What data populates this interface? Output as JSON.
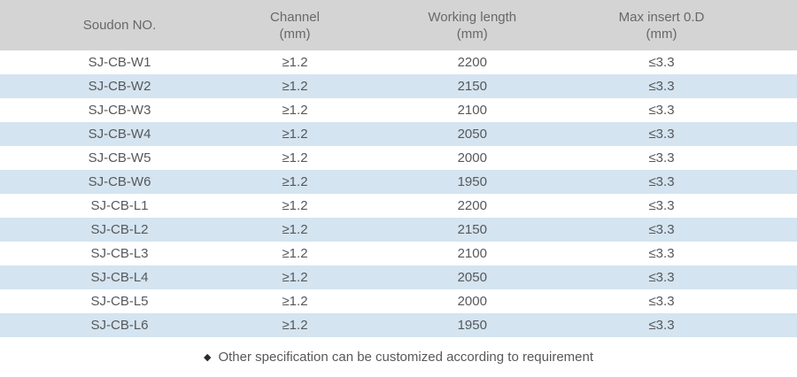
{
  "table": {
    "columns": [
      {
        "label": "Soudon NO.",
        "unit": ""
      },
      {
        "label": "Channel",
        "unit": "(mm)"
      },
      {
        "label": "Working length",
        "unit": "(mm)"
      },
      {
        "label": "Max insert 0.D",
        "unit": "(mm)"
      }
    ],
    "rows": [
      [
        "SJ-CB-W1",
        "≥1.2",
        "2200",
        "≤3.3"
      ],
      [
        "SJ-CB-W2",
        "≥1.2",
        "2150",
        "≤3.3"
      ],
      [
        "SJ-CB-W3",
        "≥1.2",
        "2100",
        "≤3.3"
      ],
      [
        "SJ-CB-W4",
        "≥1.2",
        "2050",
        "≤3.3"
      ],
      [
        "SJ-CB-W5",
        "≥1.2",
        "2000",
        "≤3.3"
      ],
      [
        "SJ-CB-W6",
        "≥1.2",
        "1950",
        "≤3.3"
      ],
      [
        "SJ-CB-L1",
        "≥1.2",
        "2200",
        "≤3.3"
      ],
      [
        "SJ-CB-L2",
        "≥1.2",
        "2150",
        "≤3.3"
      ],
      [
        "SJ-CB-L3",
        "≥1.2",
        "2100",
        "≤3.3"
      ],
      [
        "SJ-CB-L4",
        "≥1.2",
        "2050",
        "≤3.3"
      ],
      [
        "SJ-CB-L5",
        "≥1.2",
        "2000",
        "≤3.3"
      ],
      [
        "SJ-CB-L6",
        "≥1.2",
        "1950",
        "≤3.3"
      ]
    ]
  },
  "footer": {
    "bullet": "◆",
    "note": "Other specification can be customized according to requirement"
  },
  "colors": {
    "header_bg": "#d4d4d4",
    "stripe_bg": "#d4e4f0",
    "header_text": "#67686a",
    "body_text": "#57585a"
  }
}
